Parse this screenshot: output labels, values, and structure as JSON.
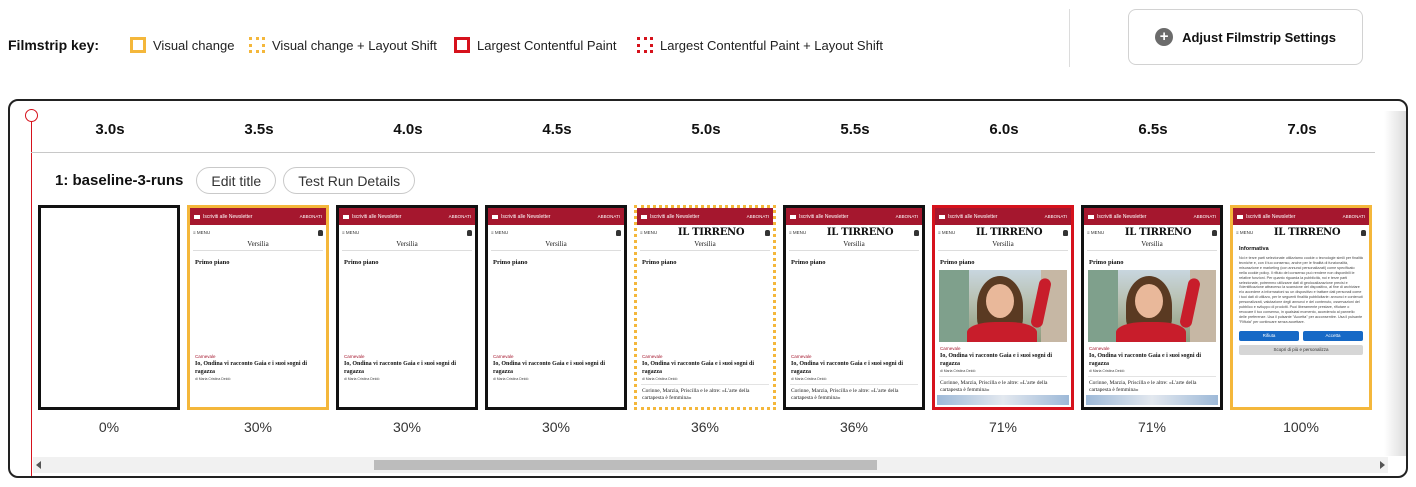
{
  "key": {
    "label": "Filmstrip key:",
    "items": [
      {
        "id": "visual",
        "label": "Visual change",
        "color": "#f4b73b",
        "style": "solid"
      },
      {
        "id": "visual-ls",
        "label": "Visual change + Layout Shift",
        "color": "#f4b73b",
        "style": "dotted"
      },
      {
        "id": "lcp",
        "label": "Largest Contentful Paint",
        "color": "#d6121c",
        "style": "solid"
      },
      {
        "id": "lcp-ls",
        "label": "Largest Contentful Paint + Layout Shift",
        "color": "#d6121c",
        "style": "dotted"
      }
    ]
  },
  "adjust_button": {
    "label": "Adjust Filmstrip Settings",
    "icon": "plus-icon"
  },
  "run": {
    "title": "1: baseline-3-runs",
    "edit_label": "Edit title",
    "details_label": "Test Run Details"
  },
  "times": [
    "3.0s",
    "3.5s",
    "4.0s",
    "4.5s",
    "5.0s",
    "5.5s",
    "6.0s",
    "6.5s",
    "7.0s"
  ],
  "frames": [
    {
      "percent": "0%",
      "border": "none",
      "content": "blank"
    },
    {
      "percent": "30%",
      "border": "visual",
      "content": "page"
    },
    {
      "percent": "30%",
      "border": "none",
      "content": "page"
    },
    {
      "percent": "30%",
      "border": "none",
      "content": "page"
    },
    {
      "percent": "36%",
      "border": "visual-ls",
      "content": "page-logo"
    },
    {
      "percent": "36%",
      "border": "none",
      "content": "page-logo"
    },
    {
      "percent": "71%",
      "border": "lcp",
      "content": "page-photo"
    },
    {
      "percent": "71%",
      "border": "none",
      "content": "page-photo"
    },
    {
      "percent": "100%",
      "border": "visual",
      "content": "consent"
    }
  ],
  "mini_page": {
    "top_bar_left": "Iscriviti alle Newsletter",
    "top_bar_right": "ABBONATI",
    "menu": "MENU",
    "logo": "IL TIRRENO",
    "section": "Versilia",
    "primo_piano": "Primo piano",
    "category": "Carnevale",
    "headline": "Io, Ondina vi racconto Gaia e i suoi sogni di ragazza",
    "author": "di Maria Cristina Deidò",
    "link": "Corinne, Marzia, Priscilla e le altre: «L'arte della cartapesta è femmina»"
  },
  "consent": {
    "title": "Informativa",
    "body": "Noi e terze parti selezionate utilizziamo cookie o tecnologie simili per finalità tecniche e, con il tuo consenso, anche per le finalità di funzionalità, misurazione e marketing (con annunci personalizzati) come specificato nella cookie policy. Il rifiuto del consenso può rendere non disponibili le relative funzioni. Per quanto riguarda la pubblicità, noi e terze parti selezionate, potremmo utilizzare dati di geolocalizzazione precisi e l'identificazione attraverso la scansione del dispositivo, al fine di archiviare e/o accedere a informazioni su un dispositivo e trattare dati personali come i tuoi dati di utilizzo, per le seguenti finalità pubblicitarie: annunci e contenuti personalizzati, valutazione degli annunci e del contenuto, osservazioni del pubblico e sviluppo di prodotti. Puoi liberamente prestare, rifiutare o revocare il tuo consenso, in qualsiasi momento, accedendo al pannello delle preferenze. Usa il pulsante \"Accetta\" per acconsentire. Usa il pulsante \"Rifiuta\" per continuare senza accettare.",
    "reject": "Rifiuta",
    "accept": "Accetta",
    "more": "Scopri di più e personalizza"
  }
}
